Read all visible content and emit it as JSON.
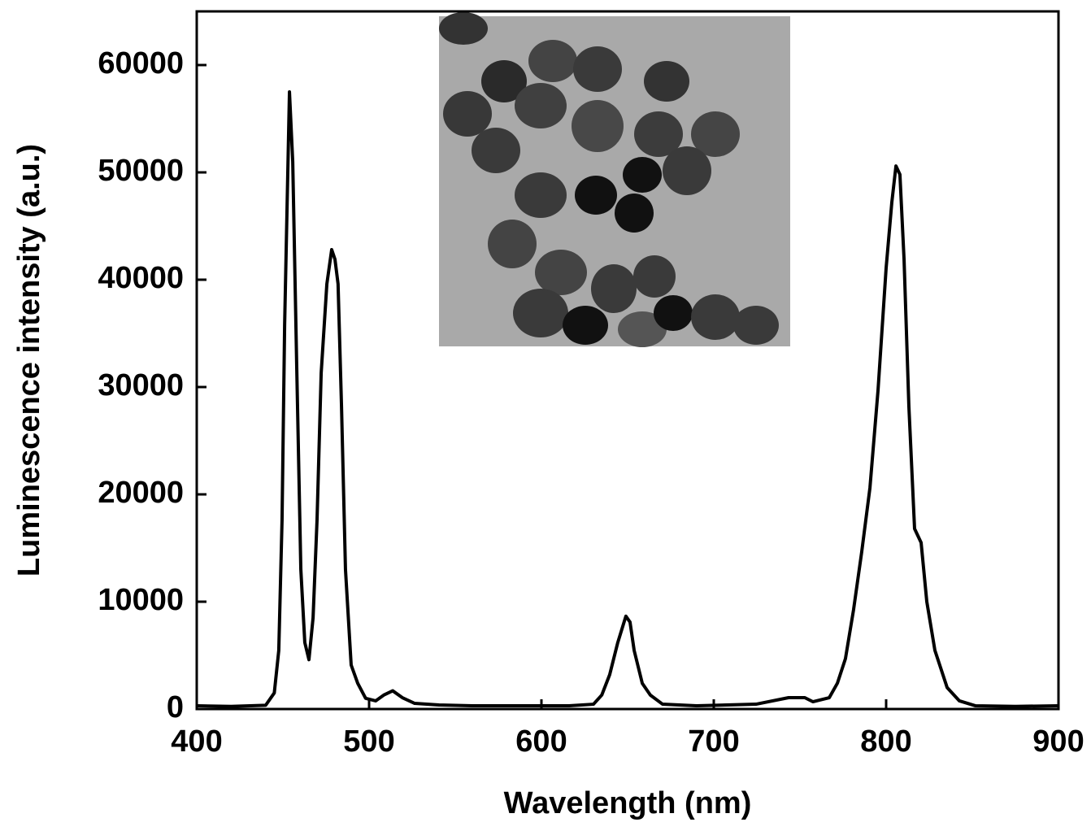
{
  "chart_data": {
    "type": "line",
    "x_label": "Wavelength (nm)",
    "y_label": "Luminescence intensity (a.u.)",
    "xlim": [
      400,
      900
    ],
    "ylim": [
      0,
      65000
    ],
    "xticks": [
      400,
      500,
      600,
      700,
      800,
      900
    ],
    "yticks": [
      0,
      10000,
      20000,
      30000,
      40000,
      50000,
      60000
    ],
    "series": [
      {
        "color": "#000000",
        "x": [
          400,
          420,
          440,
          445,
          447.6,
          449.5,
          451,
          453.8,
          455.7,
          458,
          460.4,
          462.7,
          465.1,
          467.5,
          469.8,
          472.2,
          475.5,
          478.3,
          480.2,
          482,
          484,
          486.3,
          489.6,
          493.4,
          498,
          503.8,
          508.5,
          513.7,
          519.3,
          526.4,
          540.6,
          560,
          583,
          616,
          630.2,
          635,
          639.6,
          644.3,
          649,
          651.4,
          653.8,
          658.5,
          663.2,
          670.3,
          690,
          724.5,
          743.4,
          752.8,
          757.5,
          767,
          771.7,
          776.4,
          781.1,
          785.8,
          790.6,
          795.3,
          800,
          803.3,
          805.7,
          808,
          810.4,
          813.2,
          816.5,
          820.3,
          823.6,
          828.3,
          835.4,
          842.5,
          851.9,
          875,
          900
        ],
        "values": [
          300,
          250,
          350,
          1500,
          5460,
          17600,
          35800,
          57500,
          51000,
          32000,
          13000,
          6200,
          4600,
          8500,
          17600,
          31300,
          39600,
          42800,
          41900,
          39600,
          28200,
          13000,
          4100,
          2400,
          1000,
          760,
          1300,
          1700,
          1060,
          530,
          380,
          300,
          300,
          300,
          450,
          1300,
          3200,
          6200,
          8650,
          8100,
          5460,
          2400,
          1300,
          450,
          300,
          450,
          1060,
          1060,
          680,
          1060,
          2400,
          4700,
          9250,
          14600,
          20600,
          29700,
          41100,
          47200,
          50600,
          49800,
          41900,
          28200,
          16800,
          15500,
          10000,
          5460,
          2000,
          760,
          300,
          250,
          300
        ]
      }
    ]
  }
}
